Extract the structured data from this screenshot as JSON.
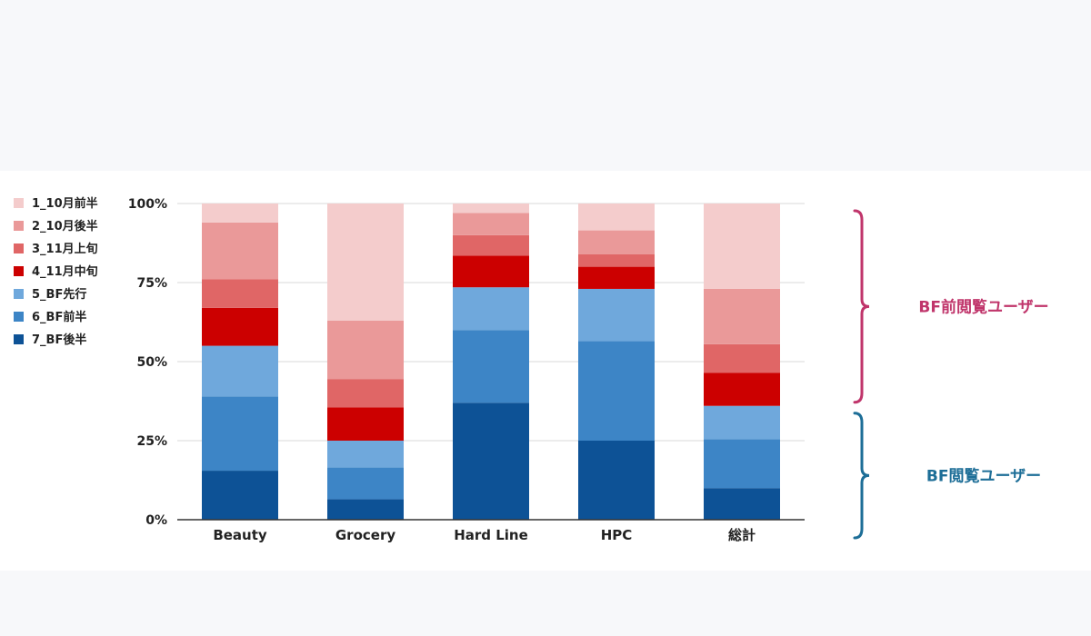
{
  "chart_data": {
    "type": "bar",
    "stacked": true,
    "normalized": true,
    "categories": [
      "Beauty",
      "Grocery",
      "Hard Line",
      "HPC",
      "総計"
    ],
    "yticks": [
      "0%",
      "25%",
      "50%",
      "75%",
      "100%"
    ],
    "ylim": [
      0,
      100
    ],
    "grid": true,
    "legend": "left",
    "series": [
      {
        "name": "7_BF後半",
        "color": "#0d5296",
        "values": [
          15.5,
          6.5,
          37,
          25,
          10
        ]
      },
      {
        "name": "6_BF前半",
        "color": "#3d85c6",
        "values": [
          23.5,
          10,
          23,
          31.5,
          15.5
        ]
      },
      {
        "name": "5_BF先行",
        "color": "#6fa8dc",
        "values": [
          16,
          8.5,
          13.5,
          16.5,
          10.5
        ]
      },
      {
        "name": "4_11月中旬",
        "color": "#cc0000",
        "values": [
          12,
          10.5,
          10,
          7,
          10.5
        ]
      },
      {
        "name": "3_11月上旬",
        "color": "#e06666",
        "values": [
          9,
          9,
          6.5,
          4,
          9
        ]
      },
      {
        "name": "2_10月後半",
        "color": "#ea9999",
        "values": [
          18,
          18.5,
          7,
          7.5,
          17.5
        ]
      },
      {
        "name": "1_10月前半",
        "color": "#f4cccc",
        "values": [
          6,
          37,
          3,
          8.5,
          27
        ]
      }
    ]
  },
  "annotations": [
    {
      "label": "BF前閲覧ユーザー",
      "color": "#c0356b",
      "from": 36,
      "to": 100
    },
    {
      "label": "BF閲覧ユーザー",
      "color": "#1d6e97",
      "from": 0,
      "to": 36
    }
  ]
}
